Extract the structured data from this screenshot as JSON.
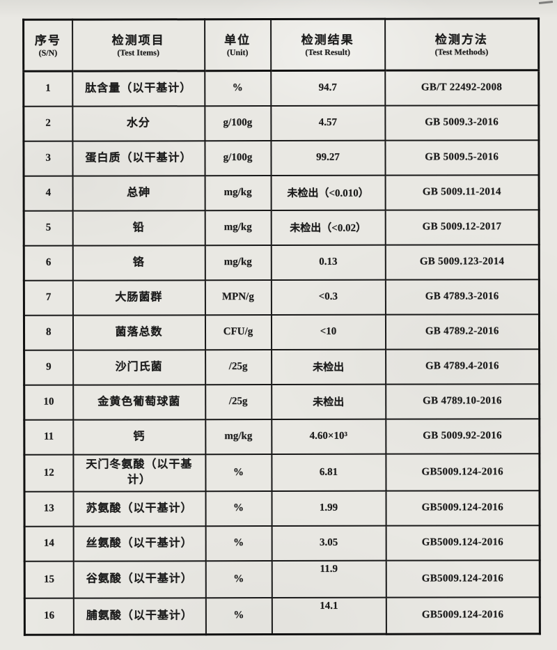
{
  "page": {
    "kind": "scanned-test-report-table"
  },
  "table": {
    "headers": [
      {
        "zh": "序号",
        "en": "(S/N)"
      },
      {
        "zh": "检测项目",
        "en": "(Test Items)"
      },
      {
        "zh": "单位",
        "en": "(Unit)"
      },
      {
        "zh": "检测结果",
        "en": "(Test Result)"
      },
      {
        "zh": "检测方法",
        "en": "(Test Methods)"
      }
    ],
    "rows": [
      {
        "sn": "1",
        "item": "肽含量（以干基计）",
        "unit": "%",
        "result": "94.7",
        "method": "GB/T 22492-2008"
      },
      {
        "sn": "2",
        "item": "水分",
        "unit": "g/100g",
        "result": "4.57",
        "method": "GB 5009.3-2016"
      },
      {
        "sn": "3",
        "item": "蛋白质（以干基计）",
        "unit": "g/100g",
        "result": "99.27",
        "method": "GB 5009.5-2016"
      },
      {
        "sn": "4",
        "item": "总砷",
        "unit": "mg/kg",
        "result": "未检出（<0.010）",
        "method": "GB 5009.11-2014"
      },
      {
        "sn": "5",
        "item": "铅",
        "unit": "mg/kg",
        "result": "未检出（<0.02）",
        "method": "GB 5009.12-2017"
      },
      {
        "sn": "6",
        "item": "铬",
        "unit": "mg/kg",
        "result": "0.13",
        "method": "GB 5009.123-2014"
      },
      {
        "sn": "7",
        "item": "大肠菌群",
        "unit": "MPN/g",
        "result": "<0.3",
        "method": "GB 4789.3-2016"
      },
      {
        "sn": "8",
        "item": "菌落总数",
        "unit": "CFU/g",
        "result": "<10",
        "method": "GB 4789.2-2016"
      },
      {
        "sn": "9",
        "item": "沙门氏菌",
        "unit": "/25g",
        "result": "未检出",
        "method": "GB 4789.4-2016"
      },
      {
        "sn": "10",
        "item": "金黄色葡萄球菌",
        "unit": "/25g",
        "result": "未检出",
        "method": "GB 4789.10-2016"
      },
      {
        "sn": "11",
        "item": "钙",
        "unit": "mg/kg",
        "result": "4.60×10³",
        "method": "GB 5009.92-2016"
      },
      {
        "sn": "12",
        "item": "天门冬氨酸（以干基计）",
        "unit": "%",
        "result": "6.81",
        "method": "GB5009.124-2016"
      },
      {
        "sn": "13",
        "item": "苏氨酸（以干基计）",
        "unit": "%",
        "result": "1.99",
        "method": "GB5009.124-2016"
      },
      {
        "sn": "14",
        "item": "丝氨酸（以干基计）",
        "unit": "%",
        "result": "3.05",
        "method": "GB5009.124-2016"
      },
      {
        "sn": "15",
        "item": "谷氨酸（以干基计）",
        "unit": "%",
        "result": "11.9",
        "method": "GB5009.124-2016",
        "result_raised": true
      },
      {
        "sn": "16",
        "item": "脯氨酸（以干基计）",
        "unit": "%",
        "result": "14.1",
        "method": "GB5009.124-2016",
        "result_raised": true
      }
    ]
  }
}
